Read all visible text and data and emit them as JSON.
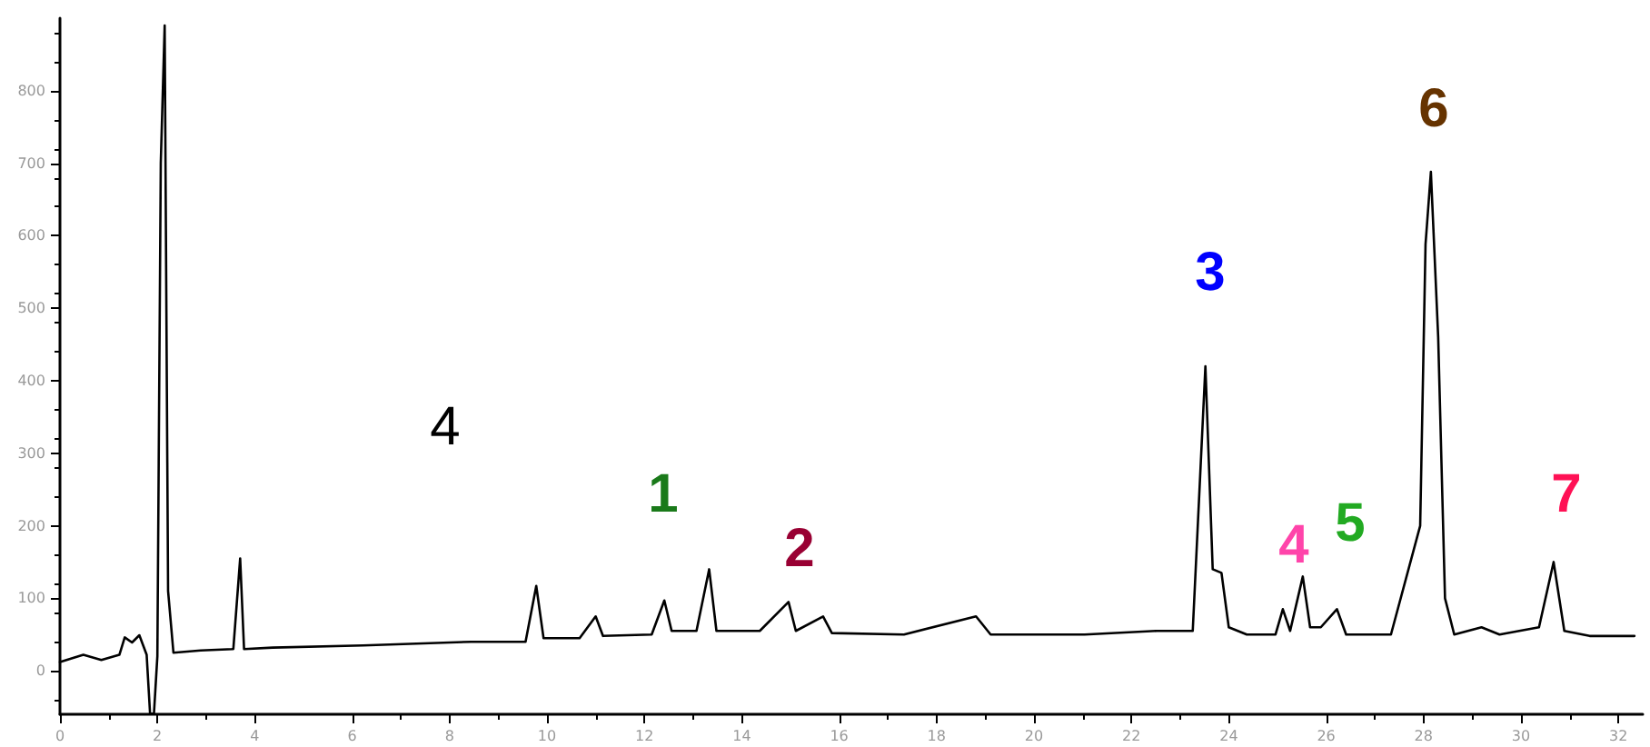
{
  "chart_data": {
    "type": "line",
    "x": [
      0,
      0.48,
      0.85,
      1.22,
      1.33,
      1.48,
      1.63,
      1.78,
      1.85,
      1.93,
      2.0,
      2.07,
      2.15,
      2.22,
      2.33,
      2.89,
      3.56,
      3.7,
      3.78,
      4.37,
      6.22,
      8.44,
      9.56,
      9.78,
      9.93,
      10.67,
      11.0,
      11.15,
      12.15,
      12.41,
      12.56,
      13.07,
      13.33,
      13.48,
      14.37,
      14.96,
      15.11,
      15.67,
      15.85,
      17.33,
      18.81,
      19.11,
      21.04,
      22.52,
      23.26,
      23.52,
      23.67,
      23.85,
      24.0,
      24.37,
      24.96,
      25.11,
      25.26,
      25.52,
      25.67,
      25.89,
      26.22,
      26.41,
      27.33,
      27.93,
      28.04,
      28.15,
      28.3,
      28.44,
      28.63,
      29.19,
      29.56,
      30.37,
      30.67,
      30.89,
      31.41,
      32.33
    ],
    "series": [
      {
        "color": "#000000",
        "values": [
          12,
          22,
          15,
          22,
          46,
          39,
          49,
          22,
          -59,
          -59,
          20,
          700,
          890,
          110,
          25,
          28,
          30,
          155,
          30,
          32,
          35,
          40,
          40,
          117,
          45,
          45,
          75,
          48,
          50,
          97,
          55,
          55,
          140,
          55,
          55,
          95,
          55,
          75,
          52,
          50,
          75,
          50,
          50,
          55,
          55,
          420,
          140,
          135,
          60,
          50,
          50,
          85,
          55,
          130,
          60,
          60,
          85,
          50,
          50,
          200,
          588,
          688,
          460,
          100,
          50,
          60,
          50,
          60,
          150,
          55,
          48,
          48
        ]
      }
    ],
    "xlim": [
      0,
      32.5
    ],
    "xticks": [
      0,
      2,
      4,
      6,
      8,
      10,
      12,
      14,
      16,
      18,
      20,
      22,
      24,
      26,
      28,
      30,
      32
    ],
    "ylim": [
      -60,
      900
    ],
    "yticks": [
      0,
      100,
      200,
      300,
      400,
      500,
      600,
      700,
      800
    ],
    "grid": false,
    "marker": "none",
    "line_style": "solid",
    "annotations": [
      "4",
      "1",
      "2",
      "3",
      "4",
      "5",
      "6",
      "7"
    ]
  }
}
